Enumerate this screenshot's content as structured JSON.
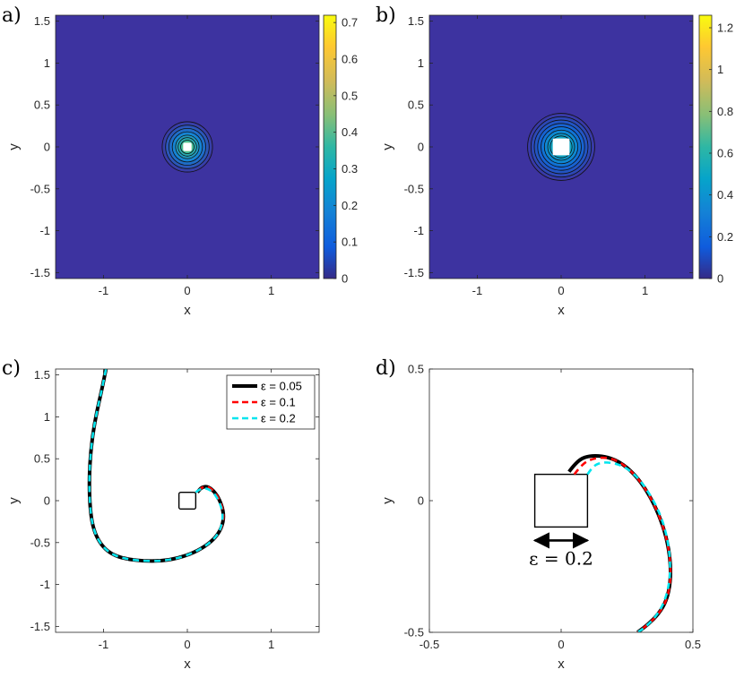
{
  "chart_data": [
    {
      "panel_label": "a)",
      "type": "heatmap",
      "xlabel": "x",
      "ylabel": "y",
      "xlim": [
        -1.5708,
        1.5708
      ],
      "ylim": [
        -1.5708,
        1.5708
      ],
      "xticks": [
        -1,
        -0.5,
        0,
        0.5,
        1
      ],
      "xtick_labels": [
        "-1",
        "0",
        "1"
      ],
      "xtick_values": [
        -1,
        0,
        1
      ],
      "ytick_values": [
        1.5,
        1,
        0.5,
        0,
        -0.5,
        -1,
        -1.5
      ],
      "ytick_labels": [
        "1.5",
        "1",
        "0.5",
        "0",
        "-0.5",
        "-1",
        "-1.5"
      ],
      "colorbar": {
        "min": 0,
        "max": 0.72,
        "tick_values": [
          0,
          0.1,
          0.2,
          0.3,
          0.4,
          0.5,
          0.6,
          0.7
        ],
        "tick_labels": [
          "0",
          "0.1",
          "0.2",
          "0.3",
          "0.4",
          "0.5",
          "0.6",
          "0.7"
        ]
      },
      "contour_ring_radii": [
        0.3,
        0.26,
        0.22,
        0.18,
        0.14,
        0.11,
        0.08
      ],
      "square_half_width": 0.05
    },
    {
      "panel_label": "b)",
      "type": "heatmap",
      "xlabel": "x",
      "ylabel": "y",
      "xlim": [
        -1.5708,
        1.5708
      ],
      "ylim": [
        -1.5708,
        1.5708
      ],
      "xtick_labels": [
        "-1",
        "0",
        "1"
      ],
      "xtick_values": [
        -1,
        0,
        1
      ],
      "ytick_values": [
        1.5,
        1,
        0.5,
        0,
        -0.5,
        -1,
        -1.5
      ],
      "ytick_labels": [
        "1.5",
        "1",
        "0.5",
        "0",
        "-0.5",
        "-1",
        "-1.5"
      ],
      "colorbar": {
        "min": 0,
        "max": 1.26,
        "tick_values": [
          0,
          0.2,
          0.4,
          0.6,
          0.8,
          1,
          1.2
        ],
        "tick_labels": [
          "0",
          "0.2",
          "0.4",
          "0.6",
          "0.8",
          "1",
          "1.2"
        ]
      },
      "contour_ring_radii": [
        0.4,
        0.36,
        0.32,
        0.28,
        0.24,
        0.2,
        0.16,
        0.13
      ],
      "square_half_width": 0.1
    },
    {
      "panel_label": "c)",
      "type": "line",
      "xlabel": "x",
      "ylabel": "y",
      "xlim": [
        -1.5708,
        1.5708
      ],
      "ylim": [
        -1.5708,
        1.5708
      ],
      "xtick_labels": [
        "-1",
        "0",
        "1"
      ],
      "xtick_values": [
        -1,
        0,
        1
      ],
      "ytick_values": [
        1.5,
        1,
        0.5,
        0,
        -0.5,
        -1,
        -1.5
      ],
      "ytick_labels": [
        "1.5",
        "1",
        "0.5",
        "0",
        "-0.5",
        "-1",
        "-1.5"
      ],
      "legend": {
        "placement": "top-right",
        "entries": [
          "ε = 0.05",
          "ε = 0.1",
          "ε = 0.2"
        ]
      },
      "square_half_width": 0.1,
      "series": [
        {
          "label": "ε = 0.05",
          "color": "#000000",
          "style": "solid",
          "x": [
            -0.97,
            -1.02,
            -1.08,
            -1.13,
            -1.16,
            -1.17,
            -1.16,
            -1.13,
            -1.07,
            -0.98,
            -0.86,
            -0.7,
            -0.52,
            -0.32,
            -0.12,
            0.08,
            0.25,
            0.37,
            0.43,
            0.43,
            0.38,
            0.32,
            0.26,
            0.21,
            0.16,
            0.12
          ],
          "y": [
            1.57,
            1.32,
            1.06,
            0.78,
            0.48,
            0.2,
            -0.08,
            -0.3,
            -0.46,
            -0.58,
            -0.66,
            -0.7,
            -0.72,
            -0.72,
            -0.69,
            -0.62,
            -0.52,
            -0.4,
            -0.26,
            -0.12,
            0.02,
            0.11,
            0.16,
            0.17,
            0.15,
            0.1
          ]
        },
        {
          "label": "ε = 0.1",
          "color": "#ff0000",
          "style": "dashed",
          "x": [
            -0.97,
            -1.02,
            -1.08,
            -1.13,
            -1.16,
            -1.17,
            -1.16,
            -1.13,
            -1.07,
            -0.98,
            -0.86,
            -0.7,
            -0.52,
            -0.32,
            -0.12,
            0.08,
            0.25,
            0.37,
            0.43,
            0.43,
            0.38,
            0.32,
            0.26,
            0.21,
            0.16,
            0.12
          ],
          "y": [
            1.57,
            1.32,
            1.06,
            0.78,
            0.48,
            0.2,
            -0.08,
            -0.3,
            -0.46,
            -0.58,
            -0.66,
            -0.7,
            -0.72,
            -0.72,
            -0.69,
            -0.62,
            -0.52,
            -0.4,
            -0.26,
            -0.12,
            0.02,
            0.11,
            0.16,
            0.17,
            0.15,
            0.1
          ]
        },
        {
          "label": "ε = 0.2",
          "color": "#00e5ee",
          "style": "dashed",
          "x": [
            -0.97,
            -1.02,
            -1.08,
            -1.13,
            -1.16,
            -1.17,
            -1.16,
            -1.13,
            -1.07,
            -0.98,
            -0.86,
            -0.7,
            -0.52,
            -0.32,
            -0.12,
            0.08,
            0.25,
            0.37,
            0.42,
            0.42,
            0.37,
            0.31,
            0.25,
            0.19,
            0.14,
            0.1
          ],
          "y": [
            1.57,
            1.32,
            1.06,
            0.78,
            0.48,
            0.2,
            -0.08,
            -0.3,
            -0.46,
            -0.58,
            -0.66,
            -0.7,
            -0.72,
            -0.72,
            -0.69,
            -0.62,
            -0.52,
            -0.4,
            -0.26,
            -0.12,
            0.01,
            0.1,
            0.14,
            0.15,
            0.13,
            0.1
          ]
        }
      ]
    },
    {
      "panel_label": "d)",
      "type": "line",
      "xlabel": "x",
      "ylabel": "y",
      "xlim": [
        -0.5,
        0.5
      ],
      "ylim": [
        -0.5,
        0.5
      ],
      "xtick_values": [
        -0.5,
        0,
        0.5
      ],
      "xtick_labels": [
        "-0.5",
        "0",
        "0.5"
      ],
      "ytick_values": [
        0.5,
        0,
        -0.5
      ],
      "ytick_labels": [
        "0.5",
        "0",
        "-0.5"
      ],
      "square_half_width": 0.1,
      "annotation": "ε = 0.2",
      "series": [
        {
          "label": "ε = 0.05",
          "color": "#000000",
          "style": "solid",
          "x": [
            0.03,
            0.06,
            0.1,
            0.16,
            0.22,
            0.28,
            0.33,
            0.37,
            0.4,
            0.415,
            0.415,
            0.4,
            0.37,
            0.33,
            0.29
          ],
          "y": [
            0.11,
            0.15,
            0.17,
            0.17,
            0.15,
            0.1,
            0.03,
            -0.05,
            -0.14,
            -0.23,
            -0.31,
            -0.38,
            -0.43,
            -0.47,
            -0.5
          ]
        },
        {
          "label": "ε = 0.1",
          "color": "#ff0000",
          "style": "dashed",
          "x": [
            0.05,
            0.08,
            0.12,
            0.17,
            0.22,
            0.28,
            0.33,
            0.37,
            0.4,
            0.415,
            0.415,
            0.4,
            0.37,
            0.33,
            0.29
          ],
          "y": [
            0.1,
            0.14,
            0.16,
            0.165,
            0.15,
            0.1,
            0.03,
            -0.05,
            -0.14,
            -0.23,
            -0.31,
            -0.38,
            -0.43,
            -0.47,
            -0.5
          ]
        },
        {
          "label": "ε = 0.2",
          "color": "#00e5ee",
          "style": "dashed",
          "x": [
            0.1,
            0.12,
            0.15,
            0.19,
            0.24,
            0.29,
            0.34,
            0.38,
            0.405,
            0.415,
            0.41,
            0.39,
            0.36,
            0.32,
            0.29
          ],
          "y": [
            0.1,
            0.13,
            0.145,
            0.145,
            0.13,
            0.09,
            0.02,
            -0.06,
            -0.15,
            -0.24,
            -0.32,
            -0.39,
            -0.44,
            -0.48,
            -0.5
          ]
        }
      ]
    }
  ]
}
